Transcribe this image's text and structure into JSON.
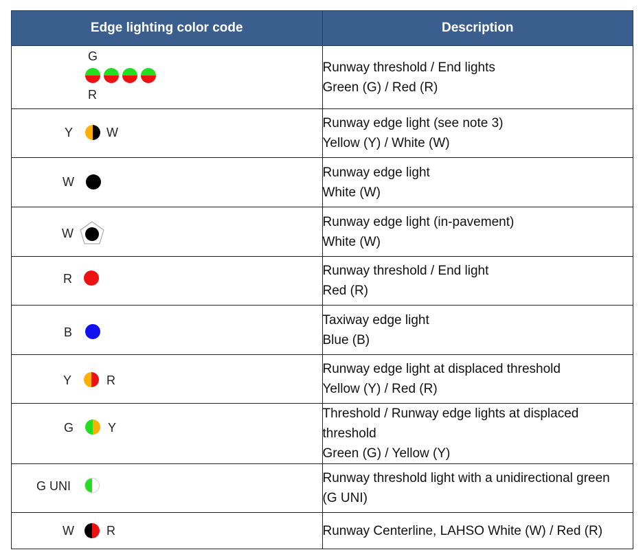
{
  "header": {
    "col_code": "Edge lighting color code",
    "col_desc": "Description"
  },
  "colors": {
    "header_bg": "#3a5f8f",
    "green": "#22dd22",
    "red": "#ee1111",
    "yellow": "#ffb000",
    "blue": "#1111ee",
    "black": "#000000",
    "white": "#ffffff"
  },
  "rows": [
    {
      "symbol": "green-red-split-dots-x4",
      "label_top": "G",
      "label_bottom": "R",
      "line1": "Runway threshold / End lights",
      "line2": "Green (G) / Red (R)"
    },
    {
      "symbol": "yellow-black-split-dot",
      "label_left": "Y",
      "label_right": "W",
      "line1": "Runway edge light (see note 3)",
      "line2": "Yellow (Y) / White (W)"
    },
    {
      "symbol": "black-dot",
      "label_left": "W",
      "line1": "Runway edge light",
      "line2": "White (W)"
    },
    {
      "symbol": "black-dot-in-pentagon",
      "label_left": "W",
      "line1": "Runway edge light (in-pavement)",
      "line2": "White (W)"
    },
    {
      "symbol": "red-dot",
      "label_left": "R",
      "line1": "Runway threshold / End light",
      "line2": "Red (R)"
    },
    {
      "symbol": "blue-dot",
      "label_left": "B",
      "line1": "Taxiway edge light",
      "line2": "Blue (B)"
    },
    {
      "symbol": "yellow-red-split-dot",
      "label_left": "Y",
      "label_right": "R",
      "line1": "Runway edge light at displaced threshold",
      "line2": "Yellow (Y) / Red (R)"
    },
    {
      "symbol": "green-yellow-split-dot",
      "label_left": "G",
      "label_right": "Y",
      "line1": "Threshold / Runway edge lights at displaced threshold",
      "line2": "Green (G) / Yellow (Y)"
    },
    {
      "symbol": "green-white-split-dot",
      "label_left": "G UNI",
      "line1": "Runway threshold light with a unidirectional green",
      "line2": "(G UNI)"
    },
    {
      "symbol": "black-red-split-dot",
      "label_left": "W",
      "label_right": "R",
      "line1": "Runway Centerline, LAHSO White (W) / Red (R)",
      "line2": ""
    }
  ]
}
